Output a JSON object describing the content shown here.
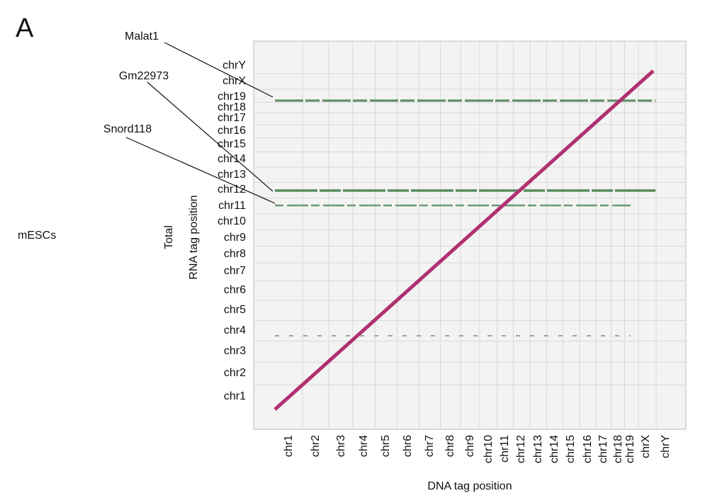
{
  "panel_label": "A",
  "row_label": "mESCs",
  "y_axis_label": [
    "Total",
    "RNA tag position"
  ],
  "x_axis_label": "DNA tag position",
  "y_labels": [
    "chrY",
    "chrX",
    "chr19",
    "chr18",
    "chr17",
    "chr16",
    "chr15",
    "chr14",
    "chr13",
    "chr12",
    "chr11",
    "chr10",
    "chr9",
    "chr8",
    "chr7",
    "chr6",
    "chr5",
    "chr4",
    "chr3",
    "chr2",
    "chr1"
  ],
  "x_labels": [
    "chr1",
    "chr2",
    "chr3",
    "chr4",
    "chr5",
    "chr6",
    "chr7",
    "chr8",
    "chr9",
    "chr10",
    "chr11",
    "chr12",
    "chr13",
    "chr14",
    "chr15",
    "chr16",
    "chr17",
    "chr18",
    "chr19",
    "chrX",
    "chrY"
  ],
  "annotations": [
    "Malat1",
    "Gm22973",
    "Snord118"
  ]
}
